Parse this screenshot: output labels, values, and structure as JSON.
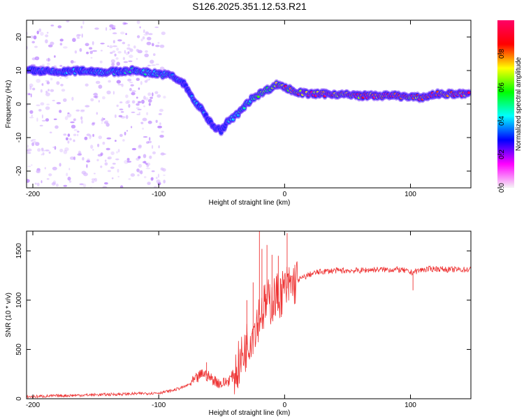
{
  "chart_data": [
    {
      "type": "heatmap",
      "title": "S126.2025.351.12.53.R21",
      "xlabel": "Height of straight line (km)",
      "ylabel": "Frequency (Hz)",
      "xlim": [
        -205,
        148
      ],
      "ylim": [
        -25,
        25
      ],
      "xticks": [
        -200,
        -100,
        0,
        100
      ],
      "xtick_labels": [
        "-200",
        "-100",
        "0",
        "100"
      ],
      "yticks": [
        -20,
        -10,
        0,
        10,
        20
      ],
      "ytick_labels": [
        "-20",
        "-10",
        "0",
        "10",
        "20"
      ],
      "colorbar": {
        "label": "Normalized spectral amplitude",
        "range": [
          0,
          1
        ],
        "ticks": [
          0,
          0.2,
          0.4,
          0.6,
          0.8
        ],
        "tick_labels": [
          "0.0",
          "0.2",
          "0.4",
          "0.6",
          "0.8"
        ],
        "colormap_stops": [
          "#f5f5f5",
          "#ff00ff",
          "#0000ff",
          "#00ffff",
          "#00ff00",
          "#ffff00",
          "#ff0000",
          "#ff0066"
        ]
      },
      "ridge": {
        "name": "Doppler residual frequency track",
        "x": [
          -200,
          -180,
          -160,
          -140,
          -120,
          -100,
          -90,
          -80,
          -75,
          -70,
          -65,
          -60,
          -55,
          -50,
          -45,
          -40,
          -35,
          -30,
          -25,
          -20,
          -15,
          -10,
          -5,
          0,
          10,
          20,
          40,
          60,
          80,
          90,
          100,
          110,
          120,
          130,
          148
        ],
        "y": [
          10,
          9.5,
          10,
          9.5,
          10,
          9,
          8.5,
          6,
          3,
          0,
          -2,
          -5,
          -7,
          -8,
          -5,
          -4,
          -2,
          0,
          2,
          3,
          4,
          5,
          6,
          5,
          3.5,
          3,
          3,
          2.5,
          2.5,
          2.5,
          2,
          2,
          3,
          3,
          3
        ],
        "amplitude": [
          0.3,
          0.35,
          0.35,
          0.4,
          0.4,
          0.45,
          0.4,
          0.3,
          0.3,
          0.35,
          0.35,
          0.3,
          0.3,
          0.25,
          0.35,
          0.4,
          0.45,
          0.5,
          0.5,
          0.6,
          0.6,
          0.55,
          0.7,
          0.75,
          0.85,
          0.9,
          0.8,
          0.85,
          0.9,
          0.85,
          0.8,
          0.85,
          0.9,
          0.95,
          0.9
        ]
      },
      "background_scatter": {
        "description": "faint low-amplitude noise speckle for heights below about -95 km",
        "x_range": [
          -205,
          -95
        ],
        "amplitude_max": 0.15
      }
    },
    {
      "type": "line",
      "xlabel": "Height of straight line (km)",
      "ylabel": "SNR (10 * v/v)",
      "xlim": [
        -205,
        148
      ],
      "ylim": [
        0,
        1700
      ],
      "xticks": [
        -200,
        -100,
        0,
        100
      ],
      "xtick_labels": [
        "-200",
        "-100",
        "0",
        "100"
      ],
      "yticks": [
        0,
        500,
        1000,
        1500
      ],
      "ytick_labels": [
        "0",
        "500",
        "1000",
        "1500"
      ],
      "series": [
        {
          "name": "SNR",
          "color": "#ee3333",
          "x": [
            -205,
            -180,
            -150,
            -120,
            -100,
            -90,
            -80,
            -75,
            -70,
            -65,
            -60,
            -55,
            -50,
            -45,
            -40,
            -35,
            -30,
            -25,
            -20,
            -15,
            -10,
            -5,
            0,
            5,
            10,
            15,
            20,
            25,
            30,
            40,
            50,
            60,
            70,
            80,
            90,
            95,
            100,
            110,
            120,
            130,
            148
          ],
          "values": [
            20,
            30,
            40,
            50,
            60,
            80,
            120,
            150,
            200,
            260,
            220,
            180,
            150,
            180,
            250,
            380,
            550,
            700,
            850,
            950,
            1000,
            1050,
            1100,
            1150,
            1200,
            1230,
            1260,
            1280,
            1290,
            1300,
            1300,
            1300,
            1310,
            1310,
            1310,
            1300,
            1280,
            1310,
            1320,
            1310,
            1310
          ],
          "spikes": [
            {
              "x": -20,
              "y": 1700
            },
            {
              "x": -18,
              "y": 1520
            },
            {
              "x": -14,
              "y": 1560
            },
            {
              "x": -10,
              "y": 1460
            },
            {
              "x": -5,
              "y": 1450
            },
            {
              "x": 2,
              "y": 1680
            },
            {
              "x": -30,
              "y": 1000
            },
            {
              "x": -25,
              "y": 1180
            },
            {
              "x": -62,
              "y": 370
            },
            {
              "x": 102,
              "y": 1100
            }
          ],
          "noise": {
            "description": "high-frequency fluctuation around the trend, strongest between -40 and 10 km",
            "amplitude_low": 15,
            "amplitude_high": 250,
            "amplitude_plateau": 30
          }
        }
      ]
    }
  ]
}
